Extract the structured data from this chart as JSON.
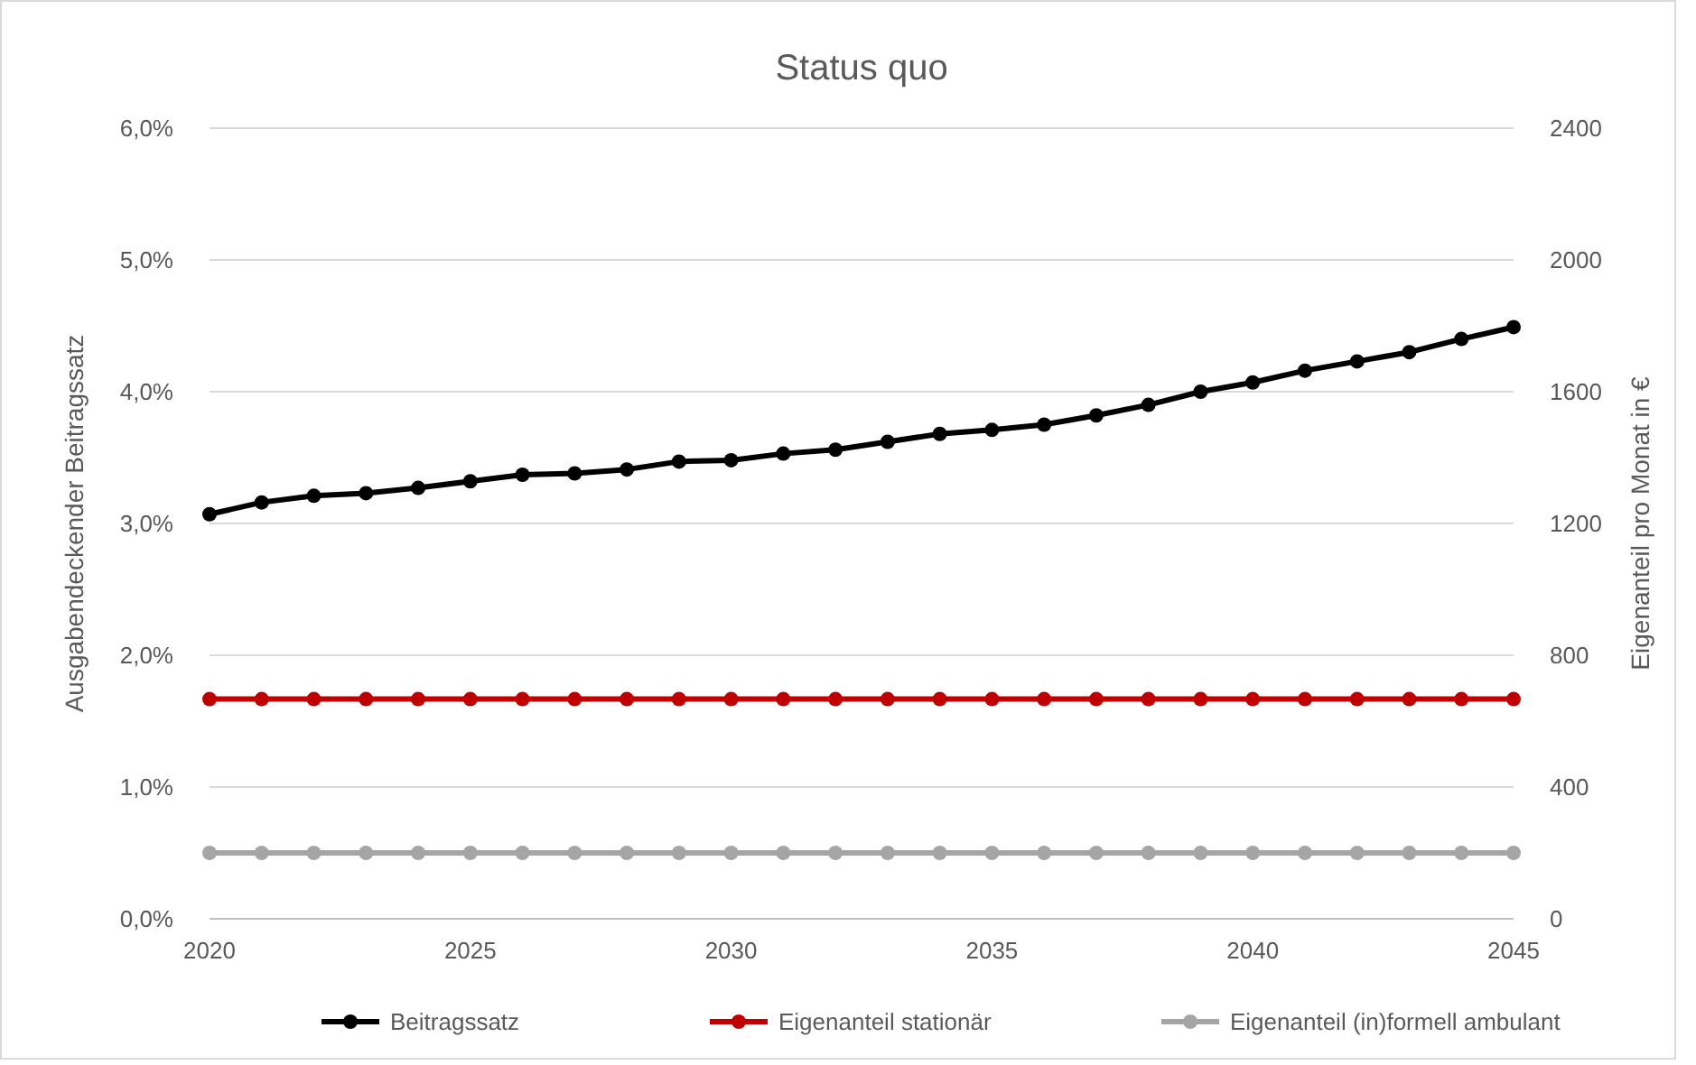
{
  "chart_data": {
    "type": "line",
    "title": "Status quo",
    "ylabel": "Ausgabendeckender Beitragssatz",
    "y2label": "Eigenanteil pro Monat in €",
    "x": [
      2020,
      2021,
      2022,
      2023,
      2024,
      2025,
      2026,
      2027,
      2028,
      2029,
      2030,
      2031,
      2032,
      2033,
      2034,
      2035,
      2036,
      2037,
      2038,
      2039,
      2040,
      2041,
      2042,
      2043,
      2044,
      2045
    ],
    "xlim": [
      2020,
      2045
    ],
    "xticks": [
      2020,
      2025,
      2030,
      2035,
      2040,
      2045
    ],
    "ylim": [
      0,
      6
    ],
    "yticks": [
      {
        "value": 0,
        "label": "0,0%"
      },
      {
        "value": 1,
        "label": "1,0%"
      },
      {
        "value": 2,
        "label": "2,0%"
      },
      {
        "value": 3,
        "label": "3,0%"
      },
      {
        "value": 4,
        "label": "4,0%"
      },
      {
        "value": 5,
        "label": "5,0%"
      },
      {
        "value": 6,
        "label": "6,0%"
      }
    ],
    "y2lim": [
      0,
      2400
    ],
    "y2ticks": [
      0,
      400,
      800,
      1200,
      1600,
      2000,
      2400
    ],
    "grid": "y",
    "legend": "bottom",
    "marker": "circle",
    "line_style": "solid",
    "series": [
      {
        "name": "Beitragssatz",
        "color": "#000000",
        "values": [
          3.07,
          3.16,
          3.21,
          3.23,
          3.27,
          3.32,
          3.37,
          3.38,
          3.41,
          3.47,
          3.48,
          3.53,
          3.56,
          3.62,
          3.68,
          3.71,
          3.75,
          3.82,
          3.9,
          4.0,
          4.07,
          4.16,
          4.23,
          4.3,
          4.4,
          4.49
        ]
      },
      {
        "name": "Eigenanteil stationär",
        "color": "#c00000",
        "axis": "y2",
        "values": [
          667,
          667,
          667,
          667,
          667,
          667,
          667,
          667,
          667,
          667,
          667,
          667,
          667,
          667,
          667,
          667,
          667,
          667,
          667,
          667,
          667,
          667,
          667,
          667,
          667,
          667
        ]
      },
      {
        "name": "Eigenanteil (in)formell ambulant",
        "color": "#a5a5a5",
        "axis": "y2",
        "values": [
          200,
          200,
          200,
          200,
          200,
          200,
          200,
          200,
          200,
          200,
          200,
          200,
          200,
          200,
          200,
          200,
          200,
          200,
          200,
          200,
          200,
          200,
          200,
          200,
          200,
          200
        ]
      }
    ]
  }
}
